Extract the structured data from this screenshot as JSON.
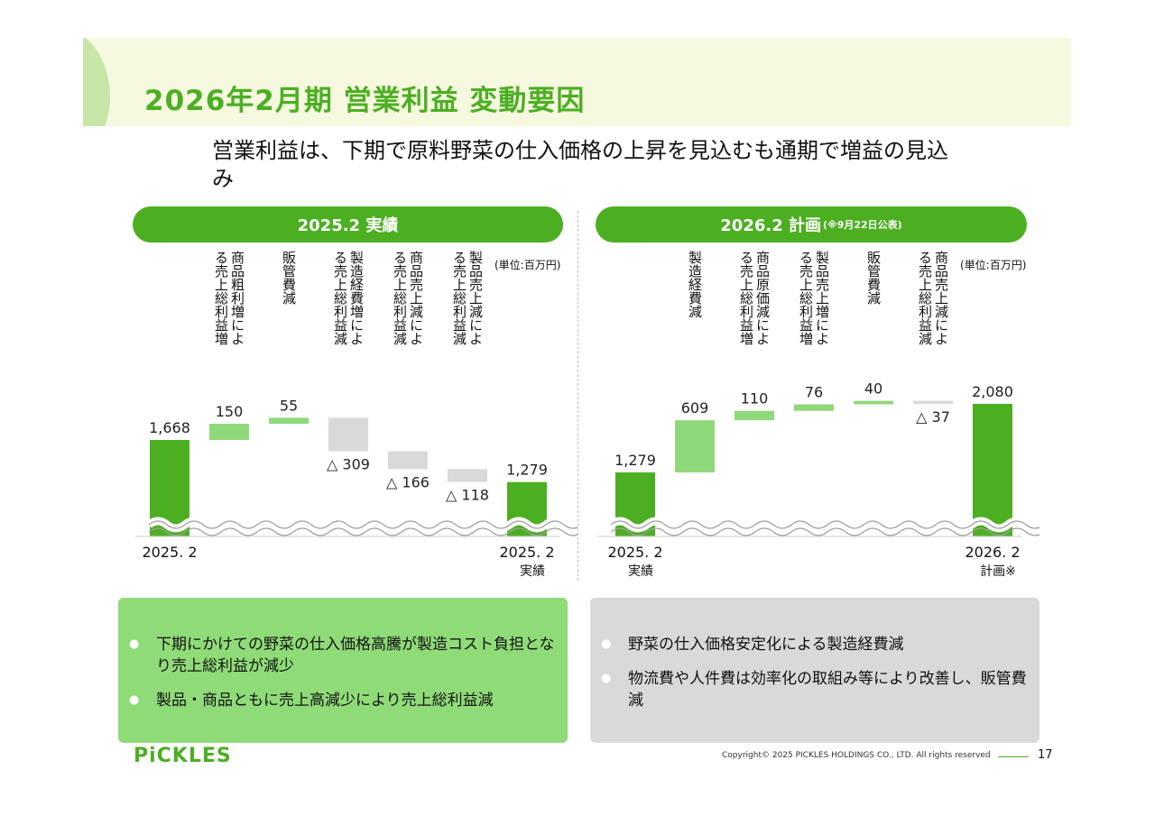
{
  "header": {
    "title": "2026年2月期  営業利益  変動要因",
    "lead": "営業利益は、下期で原料野菜の仕入価格の上昇を見込むも通期で増益の見込み"
  },
  "panels": [
    {
      "title": "2025.2  実績",
      "note": ""
    },
    {
      "title": "2026.2  計画",
      "note": "(※9月22日公表)"
    }
  ],
  "colors": {
    "main_green": "#4caf22",
    "light_green": "#8fd97a",
    "decrease_gray": "#d9d9d9",
    "box_green": "#8fdb78",
    "box_gray": "#d9d9d9"
  },
  "chart_data": [
    {
      "type": "bar",
      "subtype": "waterfall",
      "unit": "(単位:百万円)",
      "categories": [
        "2025.2",
        "商品粗利増による売上総利益増",
        "販管費減",
        "製造経費増による売上総利益減",
        "商品売上減による売上総利益減",
        "製品売上減による売上総利益減",
        "2025.2 実績"
      ],
      "values": [
        1668,
        150,
        55,
        -309,
        -166,
        -118,
        1279
      ],
      "value_labels": [
        "1,668",
        "150",
        "55",
        "△ 309",
        "△ 166",
        "△ 118",
        "1,279"
      ],
      "bar_kinds": [
        "total",
        "increase",
        "increase",
        "decrease",
        "decrease",
        "decrease",
        "total"
      ],
      "x_labels": [
        "2025. 2",
        "2025. 2"
      ],
      "x_sub_labels": [
        "",
        "実績"
      ],
      "axis_break": true
    },
    {
      "type": "bar",
      "subtype": "waterfall",
      "unit": "(単位:百万円)",
      "categories": [
        "2025.2 実績",
        "製造経費減",
        "商品原価減による売上総利益増",
        "製品売上増による売上総利益増",
        "販管費減",
        "商品売上減による売上総利益減",
        "2026.2 計画※"
      ],
      "values": [
        1279,
        609,
        110,
        76,
        40,
        -37,
        2080
      ],
      "value_labels": [
        "1,279",
        "609",
        "110",
        "76",
        "40",
        "△ 37",
        "2,080"
      ],
      "bar_kinds": [
        "total",
        "increase",
        "increase",
        "increase",
        "increase",
        "decrease",
        "total"
      ],
      "x_labels": [
        "2025. 2",
        "2026. 2"
      ],
      "x_sub_labels": [
        "実績",
        "計画※"
      ],
      "axis_break": true
    }
  ],
  "notes": {
    "left": [
      "下期にかけての野菜の仕入価格高騰が製造コスト負担となり売上総利益が減少",
      "製品・商品ともに売上高減少により売上総利益減"
    ],
    "right": [
      "野菜の仕入価格安定化による製造経費減",
      "物流費や人件費は効率化の取組み等により改善し、販管費減"
    ]
  },
  "footer": {
    "logo": "PiCKLES",
    "copyright": "Copyright© 2025 PICKLES HOLDINGS CO., LTD. All rights reserved",
    "page": "17"
  }
}
